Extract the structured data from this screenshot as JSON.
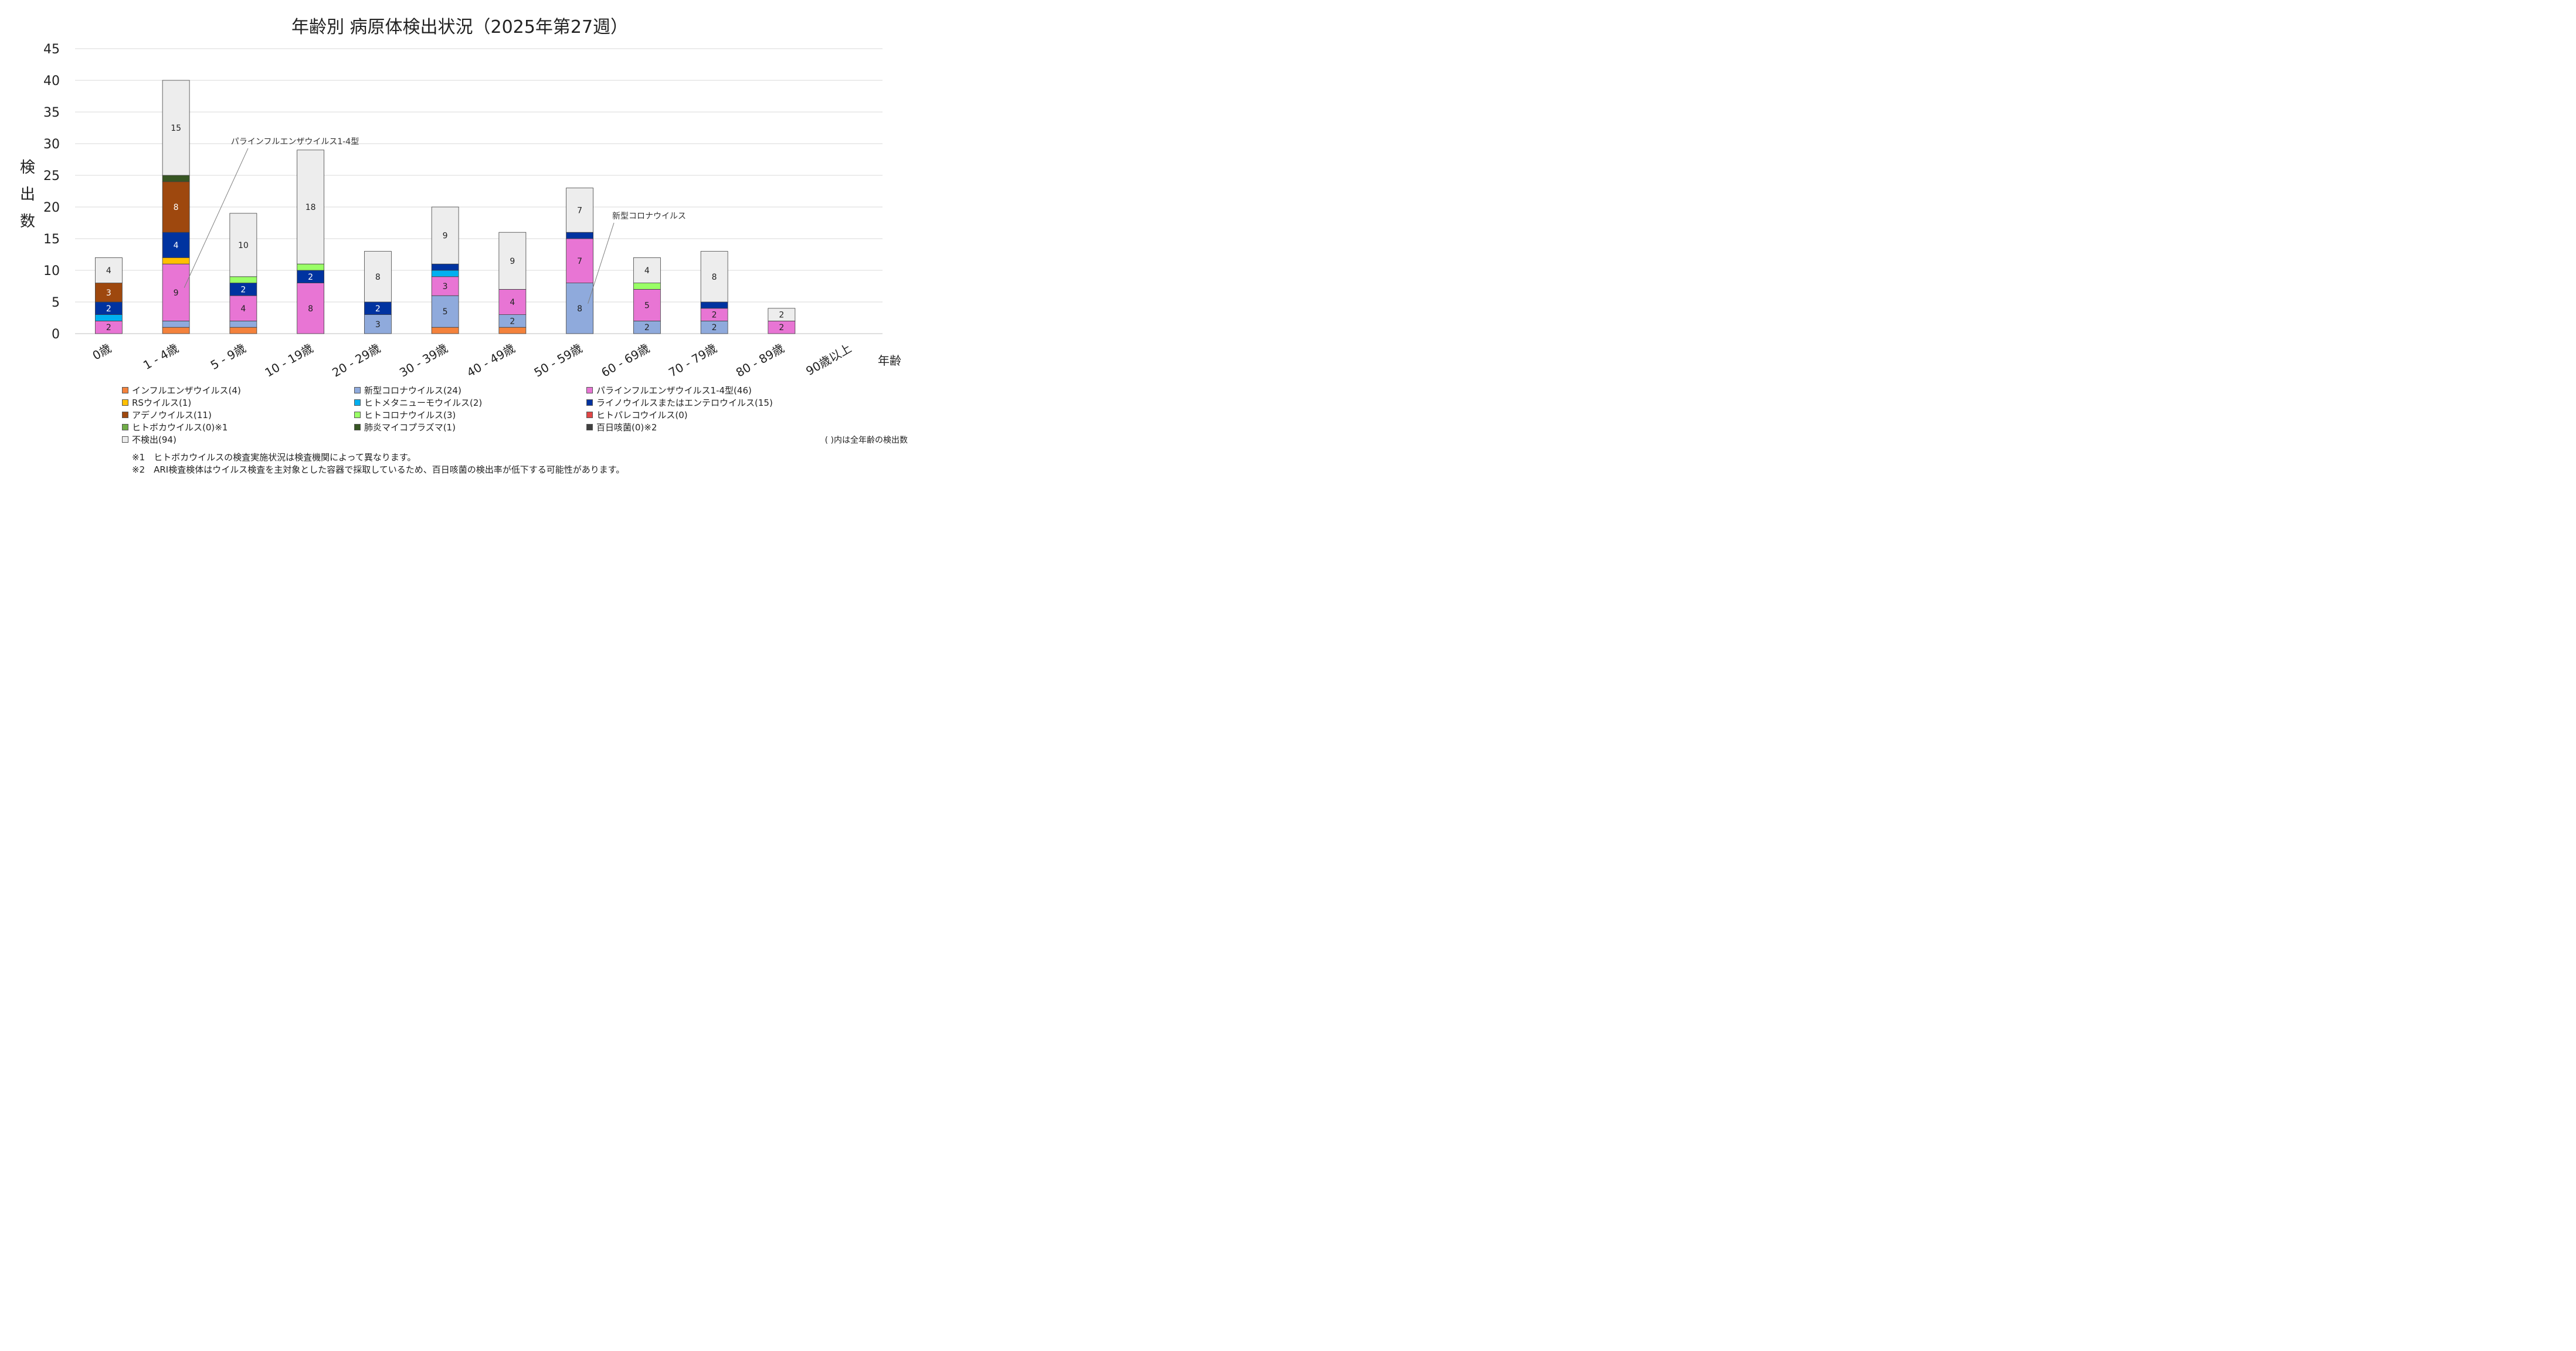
{
  "chart_data": {
    "type": "bar",
    "stacked": true,
    "title": "年齢別 病原体検出状況（2025年第27週）",
    "ylabel": "検\n出\n数",
    "xlabel": "年齢",
    "ylim": [
      0,
      45
    ],
    "yticks": [
      0,
      5,
      10,
      15,
      20,
      25,
      30,
      35,
      40,
      45
    ],
    "grid": true,
    "categories": [
      "0歳",
      "1 - 4歳",
      "5 - 9歳",
      "10 - 19歳",
      "20 - 29歳",
      "30 - 39歳",
      "40 - 49歳",
      "50 - 59歳",
      "60 - 69歳",
      "70 - 79歳",
      "80 - 89歳",
      "90歳以上"
    ],
    "series": [
      {
        "name": "インフルエンザウイルス(4)",
        "color": "#F4823C",
        "values": [
          0,
          1,
          1,
          0,
          0,
          1,
          1,
          0,
          0,
          0,
          0,
          0
        ]
      },
      {
        "name": "新型コロナウイルス(24)",
        "color": "#8FAADC",
        "values": [
          0,
          1,
          1,
          0,
          3,
          5,
          2,
          8,
          2,
          2,
          0,
          0
        ]
      },
      {
        "name": "パラインフルエンザウイルス1-4型(46)",
        "color": "#E875D4",
        "values": [
          2,
          9,
          4,
          8,
          0,
          3,
          4,
          7,
          5,
          2,
          2,
          0
        ]
      },
      {
        "name": "RSウイルス(1)",
        "color": "#FFC000",
        "values": [
          0,
          1,
          0,
          0,
          0,
          0,
          0,
          0,
          0,
          0,
          0,
          0
        ]
      },
      {
        "name": "ヒトメタニューモウイルス(2)",
        "color": "#00B0F0",
        "values": [
          1,
          0,
          0,
          0,
          0,
          1,
          0,
          0,
          0,
          0,
          0,
          0
        ]
      },
      {
        "name": "ライノウイルスまたはエンテロウイルス(15)",
        "color": "#0033A0",
        "values": [
          2,
          4,
          2,
          2,
          2,
          1,
          0,
          1,
          0,
          1,
          0,
          0
        ]
      },
      {
        "name": "アデノウイルス(11)",
        "color": "#9E480E",
        "values": [
          3,
          8,
          0,
          0,
          0,
          0,
          0,
          0,
          0,
          0,
          0,
          0
        ]
      },
      {
        "name": "ヒトコロナウイルス(3)",
        "color": "#99FF66",
        "values": [
          0,
          0,
          1,
          1,
          0,
          0,
          0,
          0,
          1,
          0,
          0,
          0
        ]
      },
      {
        "name": "ヒトパレコウイルス(0)",
        "color": "#E04646",
        "values": [
          0,
          0,
          0,
          0,
          0,
          0,
          0,
          0,
          0,
          0,
          0,
          0
        ]
      },
      {
        "name": "ヒトボカウイルス(0)※1",
        "color": "#70AD47",
        "values": [
          0,
          0,
          0,
          0,
          0,
          0,
          0,
          0,
          0,
          0,
          0,
          0
        ]
      },
      {
        "name": "肺炎マイコプラズマ(1)",
        "color": "#375623",
        "values": [
          0,
          1,
          0,
          0,
          0,
          0,
          0,
          0,
          0,
          0,
          0,
          0
        ]
      },
      {
        "name": "百日咳菌(0)※2",
        "color": "#404040",
        "values": [
          0,
          0,
          0,
          0,
          0,
          0,
          0,
          0,
          0,
          0,
          0,
          0
        ]
      },
      {
        "name": "不検出(94)",
        "color": "#EDEDED",
        "values": [
          4,
          15,
          10,
          18,
          8,
          9,
          9,
          7,
          4,
          8,
          2,
          0
        ]
      }
    ],
    "annotations": [
      {
        "text": "パラインフルエンザウイルス1-4型",
        "category": "1 - 4歳",
        "series": "パラインフルエンザウイルス1-4型(46)"
      },
      {
        "text": "新型コロナウイルス",
        "category": "50 - 59歳",
        "series": "新型コロナウイルス(24)"
      }
    ]
  },
  "legend_note": "( )内は全年齢の検出数",
  "footnotes": [
    "※1　ヒトボカウイルスの検査実施状況は検査機関によって異なります。",
    "※2　ARI検査検体はウイルス検査を主対象とした容器で採取しているため、百日咳菌の検出率が低下する可能性があります。"
  ]
}
